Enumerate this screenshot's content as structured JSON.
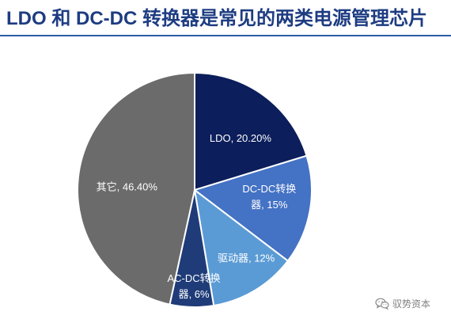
{
  "chart_data": {
    "type": "pie",
    "title": "LDO 和 DC-DC 转换器是常见的两类电源管理芯片",
    "legend": "none",
    "slices": [
      {
        "value": 20.2,
        "color": "#0c1e5b",
        "label_lines": [
          "LDO, 20.20%"
        ]
      },
      {
        "value": 15,
        "color": "#4472c4",
        "label_lines": [
          "DC-DC转换",
          "器, 15%"
        ]
      },
      {
        "value": 12,
        "color": "#5b9bd5",
        "label_lines": [
          "驱动器, 12%"
        ]
      },
      {
        "value": 6,
        "color": "#1f3c78",
        "label_lines": [
          "AC-DC转换",
          "器, 6%"
        ]
      },
      {
        "value": 46.4,
        "color": "#6b6b6b",
        "label_lines": [
          "其它, 46.40%"
        ]
      }
    ]
  },
  "colors": {
    "title": "#1d3c82",
    "title_rule": "#2d5ba5",
    "slice_separator": "#ffffff",
    "watermark": "#808080"
  },
  "watermark": {
    "icon": "wechat-icon",
    "text": "驭势资本"
  }
}
